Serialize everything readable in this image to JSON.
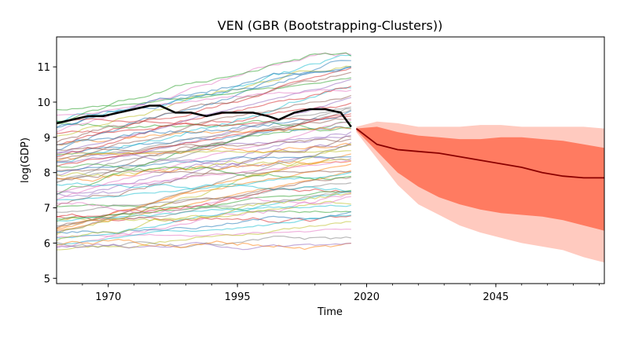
{
  "chart_data": {
    "type": "line",
    "title": "VEN (GBR (Bootstrapping-Clusters))",
    "xlabel": "Time",
    "ylabel": "log(GDP)",
    "xlim": [
      1960,
      2066
    ],
    "ylim": [
      4.85,
      11.85
    ],
    "x_ticks": [
      1970,
      1995,
      2020,
      2045
    ],
    "y_ticks": [
      5,
      6,
      7,
      8,
      9,
      10,
      11
    ],
    "grid": false,
    "legend": "none",
    "colors": {
      "highlight": "#000000",
      "median": "#8b0000",
      "inner_band": "#ff7b61",
      "outer_band": "#ffcabf",
      "background_series": [
        "#1f77b4",
        "#ff7f0e",
        "#2ca02c",
        "#d62728",
        "#9467bd",
        "#8c564b",
        "#e377c2",
        "#7f7f7f",
        "#bcbd22",
        "#17becf"
      ]
    },
    "historical": {
      "x_start": 1960,
      "x_end": 2017,
      "highlight_series": {
        "x": [
          1960,
          1963,
          1966,
          1969,
          1972,
          1975,
          1978,
          1980,
          1983,
          1986,
          1989,
          1992,
          1995,
          1998,
          2001,
          2003,
          2006,
          2009,
          2012,
          2015,
          2017
        ],
        "values": [
          9.4,
          9.5,
          9.6,
          9.6,
          9.7,
          9.8,
          9.9,
          9.9,
          9.7,
          9.7,
          9.6,
          9.7,
          9.7,
          9.7,
          9.6,
          9.5,
          9.7,
          9.8,
          9.8,
          9.7,
          9.3
        ]
      },
      "background_series_count": 70
    },
    "forecast": {
      "x": [
        2018,
        2022,
        2026,
        2030,
        2034,
        2038,
        2042,
        2046,
        2050,
        2054,
        2058,
        2062,
        2066
      ],
      "median": [
        9.25,
        8.8,
        8.65,
        8.6,
        8.55,
        8.45,
        8.35,
        8.25,
        8.15,
        8.0,
        7.9,
        7.85,
        7.85
      ],
      "inner_lower": [
        9.2,
        8.6,
        8.0,
        7.6,
        7.3,
        7.1,
        6.95,
        6.85,
        6.8,
        6.75,
        6.65,
        6.5,
        6.35
      ],
      "inner_upper": [
        9.25,
        9.3,
        9.15,
        9.05,
        9.0,
        8.95,
        8.95,
        9.0,
        9.0,
        8.95,
        8.9,
        8.8,
        8.7
      ],
      "outer_lower": [
        9.15,
        8.4,
        7.65,
        7.1,
        6.8,
        6.5,
        6.3,
        6.15,
        6.0,
        5.9,
        5.8,
        5.6,
        5.45
      ],
      "outer_upper": [
        9.3,
        9.45,
        9.4,
        9.3,
        9.3,
        9.3,
        9.35,
        9.35,
        9.3,
        9.3,
        9.3,
        9.3,
        9.25
      ]
    }
  }
}
